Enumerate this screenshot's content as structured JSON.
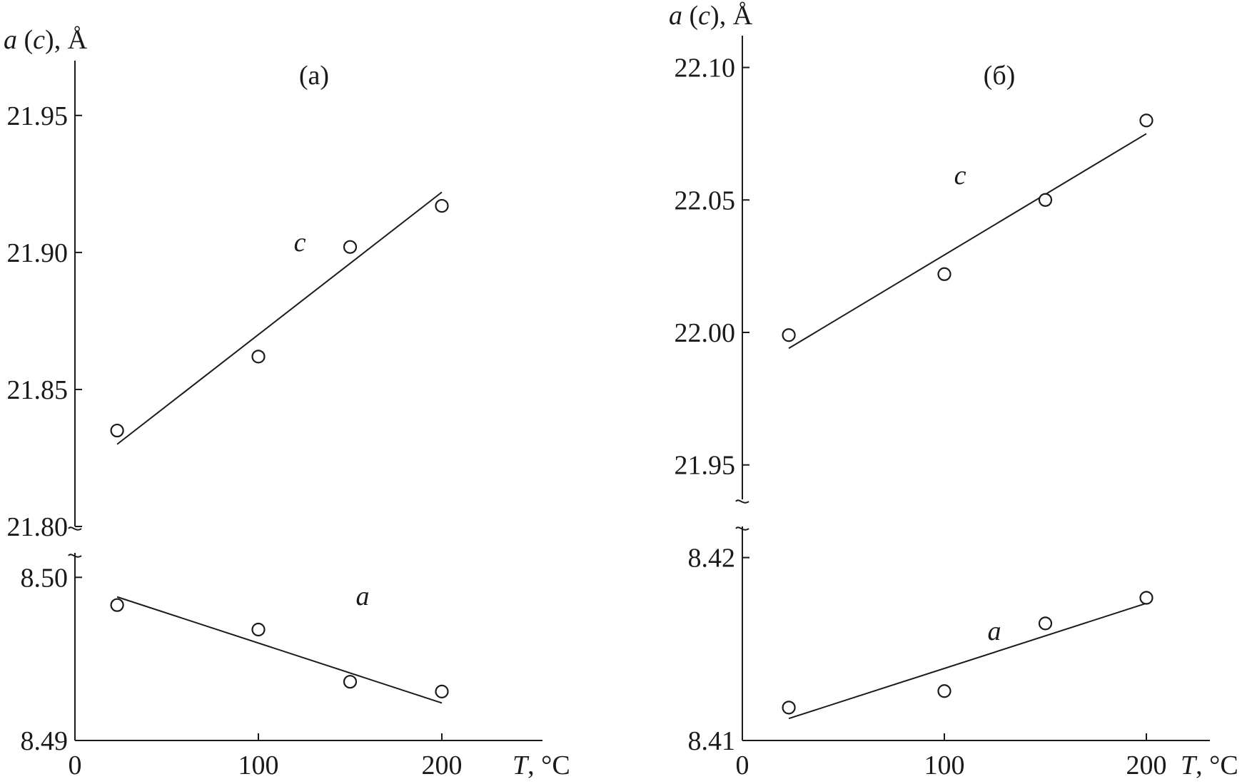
{
  "chart_data": [
    {
      "type": "scatter",
      "panel_label": "(а)",
      "ylabel_pre": "a",
      "ylabel_mid": "c",
      "ylabel_post": ", Å",
      "xlabel_var": "T",
      "xlabel_unit": ", °C",
      "x_ticks": [
        "0",
        "100",
        "200"
      ],
      "xlim": [
        0,
        230
      ],
      "upper": {
        "series_name": "c",
        "ylim": [
          21.8,
          21.97
        ],
        "y_ticks": [
          "21.80",
          "21.85",
          "21.90",
          "21.95"
        ],
        "x": [
          23,
          100,
          150,
          200
        ],
        "y": [
          21.835,
          21.862,
          21.902,
          21.917
        ],
        "fit": {
          "x": [
            23,
            200
          ],
          "y": [
            21.83,
            21.922
          ]
        }
      },
      "lower": {
        "series_name": "a",
        "ylim": [
          8.49,
          8.5015
        ],
        "y_ticks": [
          "8.49",
          "8.50"
        ],
        "x": [
          23,
          100,
          150,
          200
        ],
        "y": [
          8.4983,
          8.4968,
          8.4936,
          8.493
        ],
        "fit": {
          "x": [
            23,
            200
          ],
          "y": [
            8.4988,
            8.4923
          ]
        }
      }
    },
    {
      "type": "scatter",
      "panel_label": "(б)",
      "ylabel_pre": "a",
      "ylabel_mid": "c",
      "ylabel_post": ", Å",
      "xlabel_var": "T",
      "xlabel_unit": ", °C",
      "x_ticks": [
        "0",
        "100",
        "200"
      ],
      "xlim": [
        0,
        230
      ],
      "upper": {
        "series_name": "c",
        "ylim": [
          21.937,
          22.112
        ],
        "y_ticks": [
          "21.95",
          "22.00",
          "22.05",
          "22.10"
        ],
        "x": [
          23,
          100,
          150,
          200
        ],
        "y": [
          21.999,
          22.022,
          22.05,
          22.08
        ],
        "fit": {
          "x": [
            23,
            200
          ],
          "y": [
            21.994,
            22.075
          ]
        }
      },
      "lower": {
        "series_name": "a",
        "ylim": [
          8.41,
          8.4217
        ],
        "y_ticks": [
          "8.41",
          "8.42"
        ],
        "x": [
          23,
          100,
          150,
          200
        ],
        "y": [
          8.4118,
          8.4127,
          8.4164,
          8.4178
        ],
        "fit": {
          "x": [
            23,
            200
          ],
          "y": [
            8.4112,
            8.4175
          ]
        }
      }
    }
  ]
}
